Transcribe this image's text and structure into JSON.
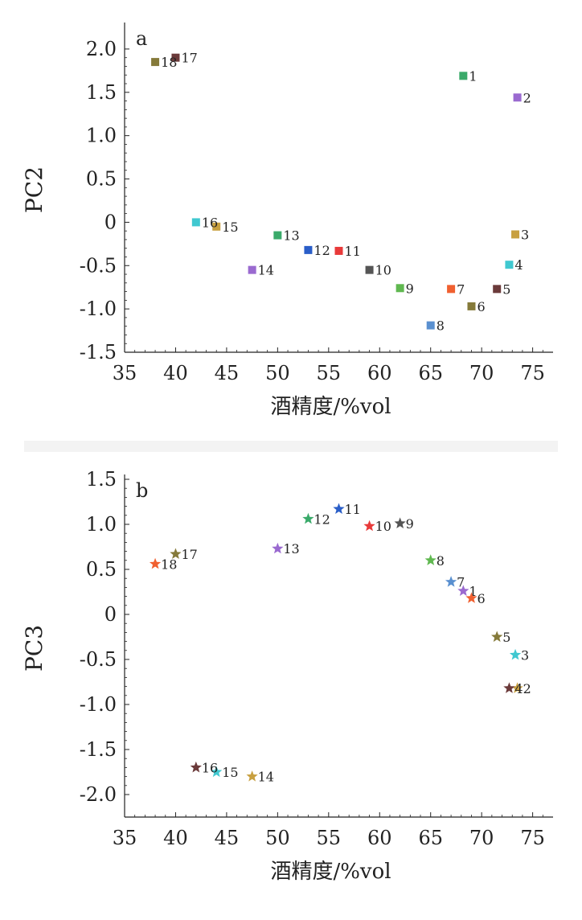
{
  "chart_data": [
    {
      "type": "scatter",
      "panel_label": "a",
      "xlabel": "酒精度/%vol",
      "ylabel": "PC2",
      "xlim": [
        35,
        77
      ],
      "ylim": [
        -1.5,
        2.25
      ],
      "x_ticks": [
        35,
        40,
        45,
        50,
        55,
        60,
        65,
        70,
        75
      ],
      "y_ticks": [
        -1.5,
        -1.0,
        -0.5,
        0,
        0.5,
        1.0,
        1.5,
        2.0
      ],
      "y_tick_labels": [
        "-1.5",
        "-1.0",
        "-0.5",
        "0",
        "0.5",
        "1.0",
        "1.5",
        "2.0"
      ],
      "marker": "square",
      "points": [
        {
          "label": "1",
          "x": 68.2,
          "y": 1.69,
          "color": "#3aaa6a"
        },
        {
          "label": "2",
          "x": 73.5,
          "y": 1.44,
          "color": "#9a6ad0"
        },
        {
          "label": "3",
          "x": 73.3,
          "y": -0.14,
          "color": "#c8a040"
        },
        {
          "label": "4",
          "x": 72.7,
          "y": -0.49,
          "color": "#40c8d0"
        },
        {
          "label": "5",
          "x": 71.5,
          "y": -0.77,
          "color": "#6b3a3a"
        },
        {
          "label": "6",
          "x": 69.0,
          "y": -0.97,
          "color": "#857a3a"
        },
        {
          "label": "7",
          "x": 67.0,
          "y": -0.77,
          "color": "#f06030"
        },
        {
          "label": "8",
          "x": 65.0,
          "y": -1.19,
          "color": "#5a90d0"
        },
        {
          "label": "9",
          "x": 62.0,
          "y": -0.76,
          "color": "#60b850"
        },
        {
          "label": "10",
          "x": 59.0,
          "y": -0.55,
          "color": "#555555"
        },
        {
          "label": "11",
          "x": 56.0,
          "y": -0.33,
          "color": "#e83a3a"
        },
        {
          "label": "12",
          "x": 53.0,
          "y": -0.32,
          "color": "#2a5ec8"
        },
        {
          "label": "13",
          "x": 50.0,
          "y": -0.15,
          "color": "#3aaa6a"
        },
        {
          "label": "14",
          "x": 47.5,
          "y": -0.55,
          "color": "#9a6ad0"
        },
        {
          "label": "15",
          "x": 44.0,
          "y": -0.05,
          "color": "#c8a040"
        },
        {
          "label": "16",
          "x": 42.0,
          "y": 0.0,
          "color": "#40c8d0"
        },
        {
          "label": "17",
          "x": 40.0,
          "y": 1.9,
          "color": "#6b3a3a"
        },
        {
          "label": "18",
          "x": 38.0,
          "y": 1.85,
          "color": "#857a3a"
        }
      ]
    },
    {
      "type": "scatter",
      "panel_label": "b",
      "xlabel": "酒精度/%vol",
      "ylabel": "PC3",
      "xlim": [
        35,
        77
      ],
      "ylim": [
        -2.25,
        1.5
      ],
      "x_ticks": [
        35,
        40,
        45,
        50,
        55,
        60,
        65,
        70,
        75
      ],
      "y_ticks": [
        -2.0,
        -1.5,
        -1.0,
        -0.5,
        0,
        0.5,
        1.0,
        1.5
      ],
      "y_tick_labels": [
        "-2.0",
        "-1.5",
        "-1.0",
        "-0.5",
        "0",
        "0.5",
        "1.0",
        "1.5"
      ],
      "marker": "star",
      "points": [
        {
          "label": "1",
          "x": 68.2,
          "y": 0.26,
          "color": "#9a6ad0"
        },
        {
          "label": "2",
          "x": 73.5,
          "y": -0.82,
          "color": "#c8a040"
        },
        {
          "label": "3",
          "x": 73.3,
          "y": -0.45,
          "color": "#40c8d0"
        },
        {
          "label": "4",
          "x": 72.7,
          "y": -0.82,
          "color": "#6b3a3a"
        },
        {
          "label": "5",
          "x": 71.5,
          "y": -0.25,
          "color": "#857a3a"
        },
        {
          "label": "6",
          "x": 69.0,
          "y": 0.18,
          "color": "#f06030"
        },
        {
          "label": "7",
          "x": 67.0,
          "y": 0.36,
          "color": "#5a90d0"
        },
        {
          "label": "8",
          "x": 65.0,
          "y": 0.6,
          "color": "#60b850"
        },
        {
          "label": "9",
          "x": 62.0,
          "y": 1.01,
          "color": "#555555"
        },
        {
          "label": "10",
          "x": 59.0,
          "y": 0.98,
          "color": "#e83a3a"
        },
        {
          "label": "11",
          "x": 56.0,
          "y": 1.17,
          "color": "#2a5ec8"
        },
        {
          "label": "12",
          "x": 53.0,
          "y": 1.06,
          "color": "#3aaa6a"
        },
        {
          "label": "13",
          "x": 50.0,
          "y": 0.73,
          "color": "#9a6ad0"
        },
        {
          "label": "14",
          "x": 47.5,
          "y": -1.8,
          "color": "#c8a040"
        },
        {
          "label": "15",
          "x": 44.0,
          "y": -1.75,
          "color": "#40c8d0"
        },
        {
          "label": "16",
          "x": 42.0,
          "y": -1.7,
          "color": "#6b3a3a"
        },
        {
          "label": "17",
          "x": 40.0,
          "y": 0.67,
          "color": "#857a3a"
        },
        {
          "label": "18",
          "x": 38.0,
          "y": 0.56,
          "color": "#f06030"
        }
      ]
    }
  ]
}
